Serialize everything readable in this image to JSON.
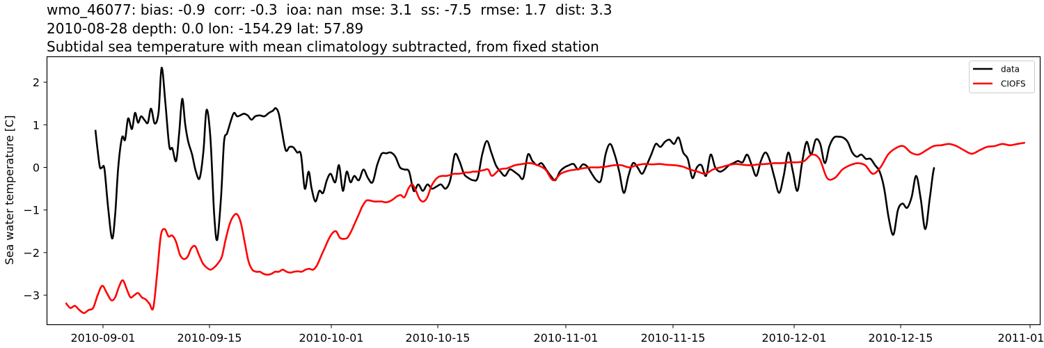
{
  "title": {
    "line1": "wmo_46077: bias: -0.9  corr: -0.3  ioa: nan  mse: 3.1  ss: -7.5  rmse: 1.7  dist: 3.3",
    "line2": "2010-08-28 depth: 0.0 lon: -154.29 lat: 57.89",
    "line3": "Subtidal sea temperature with mean climatology subtracted, from fixed station"
  },
  "chart_data": {
    "type": "line",
    "title": "wmo_46077: bias: -0.9  corr: -0.3  ioa: nan  mse: 3.1  ss: -7.5  rmse: 1.7  dist: 3.3 / 2010-08-28 depth: 0.0 lon: -154.29 lat: 57.89 / Subtidal sea temperature with mean climatology subtracted, from fixed station",
    "xlabel": "",
    "ylabel": "Sea water temperature [C]",
    "ylim": [
      -3.7,
      2.6
    ],
    "xlim": [
      "2010-08-25",
      "2011-01-02"
    ],
    "yticks": [
      -3,
      -2,
      -1,
      0,
      1,
      2
    ],
    "ytick_labels": [
      "−3",
      "−2",
      "−1",
      "0",
      "1",
      "2"
    ],
    "xticks": [
      "2010-09-01",
      "2010-09-15",
      "2010-10-01",
      "2010-10-15",
      "2010-11-01",
      "2010-11-15",
      "2010-12-01",
      "2010-12-15",
      "2011-01-01"
    ],
    "grid": false,
    "legend": {
      "position": "upper right",
      "entries": [
        "data",
        "CIOFS"
      ]
    },
    "series": [
      {
        "name": "data",
        "color": "#000000",
        "x_days": [
          0,
          0.3,
          0.6,
          0.9,
          1.2,
          1.7,
          2.2,
          2.6,
          3.0,
          3.5,
          3.9,
          4.3,
          4.8,
          5.2,
          5.6,
          6.0,
          6.5,
          6.9,
          7.3,
          7.8,
          8.3,
          8.7,
          9.2,
          9.7,
          10.1,
          10.6,
          11.0,
          11.4,
          11.8,
          12.2,
          12.7,
          13.2,
          13.7,
          14.2,
          14.6,
          15.1,
          15.6,
          16.0,
          16.5,
          16.9,
          17.3,
          17.8,
          18.2,
          18.6,
          19.0,
          19.5,
          20.0,
          20.5,
          21.0,
          21.6,
          22.2,
          22.8,
          23.3,
          23.7,
          24.1,
          24.5,
          25.0,
          25.5,
          26.0,
          26.5,
          27.0,
          27.5,
          28.0,
          28.4,
          28.9,
          29.4,
          29.9,
          30.4,
          30.9,
          31.5,
          32.0,
          32.5,
          33.0,
          33.5,
          34.0,
          34.6,
          35.2,
          35.8,
          36.4,
          37.0,
          37.6,
          38.2,
          38.8,
          39.4,
          40.0,
          40.6,
          41.2,
          41.8,
          42.4,
          43.0,
          43.6,
          44.2,
          44.8,
          45.4,
          46.0,
          46.6,
          47.2,
          47.8,
          48.4,
          49.0,
          49.6,
          50.2,
          50.8,
          51.4,
          52.0,
          52.6,
          53.2,
          53.8,
          54.4,
          55.0,
          55.6,
          56.2,
          56.8,
          57.4,
          58.0,
          58.6,
          59.2,
          59.8,
          60.4,
          61.0,
          61.6,
          62.2,
          62.8,
          63.4,
          64.0,
          64.6,
          65.2,
          65.8,
          66.4,
          67.0,
          67.6,
          68.2,
          68.8,
          69.4,
          70.0,
          70.6,
          71.2,
          71.8,
          72.4,
          73.0,
          73.6,
          74.2,
          74.8,
          75.4,
          76.0,
          76.6,
          77.2,
          77.8,
          78.4,
          79.0,
          79.6,
          80.2,
          80.8,
          81.4,
          82.0,
          82.6,
          83.2,
          83.8,
          84.4,
          85.0,
          85.6,
          86.2,
          86.8,
          87.4,
          88.0,
          88.6,
          89.2,
          89.8,
          90.4,
          91.0,
          91.6,
          92.2,
          92.8,
          93.4,
          94.0,
          94.6,
          95.2,
          95.8,
          96.4,
          97.0,
          97.6,
          98.2,
          98.8,
          99.4,
          100.0,
          100.6,
          101.2,
          101.8,
          102.4,
          103.0,
          103.6,
          104.2,
          104.8,
          105.4,
          106.0,
          106.6,
          107.2,
          107.8,
          108.4,
          109.0,
          109.6,
          110.2,
          110.8,
          111.4,
          112.0,
          112.6,
          113.2,
          113.8,
          114.4,
          115.0,
          115.6,
          116.2,
          116.8,
          117.4,
          118.0,
          118.6,
          119.2,
          119.8,
          120.4,
          121.0,
          121.6,
          122.2
        ],
        "x_origin": "2010-08-31",
        "values": [
          0.88,
          0.4,
          0.0,
          0.0,
          -0.05,
          -1.0,
          -1.67,
          -1.1,
          0.0,
          0.7,
          0.65,
          1.15,
          0.9,
          1.28,
          1.05,
          1.2,
          1.1,
          1.05,
          1.38,
          1.03,
          1.3,
          2.34,
          1.5,
          0.5,
          0.45,
          0.15,
          0.8,
          1.61,
          1.0,
          0.6,
          0.3,
          -0.1,
          -0.25,
          0.4,
          1.35,
          0.7,
          -1.1,
          -1.7,
          -0.7,
          0.6,
          0.8,
          1.1,
          1.28,
          1.2,
          1.22,
          1.26,
          1.22,
          1.12,
          1.2,
          1.22,
          1.2,
          1.28,
          1.33,
          1.39,
          1.25,
          0.85,
          0.4,
          0.48,
          0.47,
          0.35,
          0.3,
          -0.5,
          -0.1,
          -0.5,
          -0.8,
          -0.55,
          -0.6,
          -0.3,
          -0.15,
          -0.35,
          0.05,
          -0.55,
          -0.1,
          -0.35,
          -0.2,
          -0.3,
          -0.05,
          -0.25,
          -0.35,
          0.05,
          0.32,
          0.33,
          0.35,
          0.25,
          0.0,
          -0.05,
          -0.1,
          -0.55,
          -0.4,
          -0.55,
          -0.4,
          -0.5,
          -0.45,
          -0.4,
          -0.5,
          -0.3,
          0.3,
          0.15,
          -0.15,
          -0.25,
          -0.3,
          -0.25,
          0.3,
          0.62,
          0.35,
          0.05,
          -0.1,
          -0.2,
          -0.05,
          -0.1,
          -0.18,
          -0.25,
          0.3,
          0.15,
          0.05,
          0.1,
          -0.05,
          -0.2,
          -0.3,
          -0.1,
          0.0,
          0.05,
          0.08,
          -0.05,
          0.07,
          0.02,
          -0.15,
          -0.3,
          -0.3,
          0.3,
          0.55,
          0.3,
          -0.1,
          -0.6,
          -0.2,
          0.1,
          0.0,
          -0.15,
          0.05,
          0.3,
          0.55,
          0.48,
          0.6,
          0.65,
          0.55,
          0.7,
          0.35,
          0.2,
          -0.25,
          0.0,
          0.05,
          -0.2,
          0.3,
          0.0,
          -0.1,
          -0.05,
          0.05,
          0.1,
          0.15,
          0.12,
          0.3,
          0.05,
          -0.2,
          0.15,
          0.35,
          0.15,
          -0.25,
          -0.6,
          -0.2,
          0.35,
          -0.1,
          -0.55,
          0.1,
          0.6,
          0.3,
          0.65,
          0.55,
          0.1,
          0.5,
          0.7,
          0.72,
          0.7,
          0.6,
          0.35,
          0.25,
          0.3,
          0.2,
          0.2,
          0.05,
          -0.1,
          -0.5,
          -1.2,
          -1.58,
          -1.0,
          -0.85,
          -0.95,
          -0.7,
          -0.2,
          -0.75,
          -1.45,
          -0.7,
          0.0,
          -0.45
        ]
      },
      {
        "name": "CIOFS",
        "color": "#ff0000",
        "x_days": [
          -3.9,
          -3.3,
          -2.7,
          -2.1,
          -1.5,
          -0.9,
          -0.3,
          0.3,
          0.9,
          1.5,
          2.1,
          2.6,
          3.1,
          3.6,
          4.1,
          4.6,
          5.1,
          5.6,
          6.1,
          6.6,
          7.1,
          7.6,
          8.1,
          8.6,
          9.1,
          9.6,
          10.1,
          10.6,
          11.1,
          11.6,
          12.1,
          12.6,
          13.1,
          13.6,
          14.1,
          14.6,
          15.1,
          15.6,
          16.1,
          16.6,
          17.1,
          17.6,
          18.1,
          18.6,
          19.1,
          19.6,
          20.1,
          20.6,
          21.1,
          21.6,
          22.1,
          22.6,
          23.1,
          23.6,
          24.1,
          24.6,
          25.1,
          25.6,
          26.1,
          26.6,
          27.1,
          27.6,
          28.1,
          28.6,
          29.1,
          29.6,
          30.1,
          30.6,
          31.1,
          31.6,
          32.1,
          32.6,
          33.1,
          33.6,
          34.1,
          34.6,
          35.1,
          35.6,
          36.1,
          36.6,
          37.1,
          37.6,
          38.1,
          38.6,
          39.1,
          39.6,
          40.1,
          40.6,
          41.1,
          41.6,
          42.1,
          42.6,
          43.1,
          43.6,
          44.1,
          44.6,
          45.1,
          45.6,
          46.1,
          46.6,
          47.1,
          47.6,
          48.1,
          48.6,
          49.1,
          49.6,
          50.1,
          50.6,
          51.1,
          51.6,
          52.1,
          53.1,
          54.1,
          55.1,
          56.1,
          57.1,
          58.1,
          59.1,
          60.1,
          61.1,
          62.1,
          63.1,
          64.1,
          65.1,
          66.1,
          67.1,
          68.1,
          69.1,
          70.1,
          71.1,
          72.1,
          73.1,
          74.1,
          75.1,
          76.1,
          77.1,
          78.1,
          79.1,
          80.1,
          81.1,
          82.1,
          83.1,
          84.1,
          85.1,
          86.1,
          87.1,
          88.1,
          89.1,
          90.1,
          91.1,
          92.1,
          93.1,
          94.1,
          95.1,
          96.1,
          97.1,
          98.1,
          99.1,
          100.1,
          101.1,
          102.1,
          103.1,
          104.1,
          105.1,
          106.1,
          107.1,
          108.1,
          109.1,
          110.1,
          111.1,
          112.1,
          113.1,
          114.1,
          115.1,
          116.1,
          117.1,
          118.1,
          119.1,
          120.1,
          121.1,
          122.1
        ],
        "x_origin": "2010-08-31",
        "values": [
          -3.18,
          -3.3,
          -3.25,
          -3.35,
          -3.42,
          -3.35,
          -3.3,
          -3.0,
          -2.78,
          -2.95,
          -3.12,
          -3.05,
          -2.8,
          -2.65,
          -2.85,
          -3.05,
          -3.0,
          -2.95,
          -3.05,
          -3.1,
          -3.2,
          -3.3,
          -2.5,
          -1.6,
          -1.45,
          -1.62,
          -1.6,
          -1.75,
          -2.05,
          -2.15,
          -2.1,
          -1.9,
          -1.85,
          -2.05,
          -2.25,
          -2.35,
          -2.4,
          -2.35,
          -2.25,
          -2.1,
          -1.7,
          -1.35,
          -1.15,
          -1.1,
          -1.3,
          -1.75,
          -2.2,
          -2.4,
          -2.45,
          -2.45,
          -2.5,
          -2.52,
          -2.5,
          -2.45,
          -2.45,
          -2.4,
          -2.45,
          -2.47,
          -2.45,
          -2.44,
          -2.45,
          -2.4,
          -2.38,
          -2.4,
          -2.3,
          -2.1,
          -1.9,
          -1.7,
          -1.55,
          -1.5,
          -1.65,
          -1.68,
          -1.65,
          -1.5,
          -1.3,
          -1.1,
          -0.9,
          -0.78,
          -0.78,
          -0.8,
          -0.8,
          -0.8,
          -0.82,
          -0.8,
          -0.75,
          -0.68,
          -0.65,
          -0.7,
          -0.5,
          -0.4,
          -0.55,
          -0.75,
          -0.8,
          -0.7,
          -0.45,
          -0.3,
          -0.22,
          -0.2,
          -0.2,
          -0.18,
          -0.15,
          -0.15,
          -0.14,
          -0.12,
          -0.12,
          -0.1,
          -0.1,
          -0.08,
          -0.06,
          -0.05,
          -0.2,
          -0.05,
          -0.02,
          0.05,
          0.08,
          0.1,
          0.05,
          -0.05,
          -0.3,
          -0.15,
          -0.08,
          -0.05,
          -0.02,
          0.0,
          0.0,
          0.02,
          0.05,
          0.05,
          0.0,
          0.05,
          0.08,
          0.07,
          0.08,
          0.06,
          0.05,
          0.02,
          -0.05,
          -0.1,
          -0.15,
          -0.05,
          0.0,
          0.05,
          0.08,
          0.06,
          0.05,
          0.07,
          0.08,
          0.1,
          0.1,
          0.12,
          0.12,
          0.15,
          0.3,
          0.2,
          -0.25,
          -0.25,
          -0.05,
          0.05,
          0.1,
          0.05,
          -0.15,
          0.0,
          0.3,
          0.45,
          0.5,
          0.35,
          0.3,
          0.4,
          0.5,
          0.52,
          0.55,
          0.5,
          0.4,
          0.32,
          0.4,
          0.48,
          0.5,
          0.55,
          0.52,
          0.55,
          0.58
        ]
      }
    ]
  },
  "axes": {
    "ylabel": "Sea water temperature [C]",
    "yticks": [
      {
        "value": 2,
        "label": "2"
      },
      {
        "value": 1,
        "label": "1"
      },
      {
        "value": 0,
        "label": "0"
      },
      {
        "value": -1,
        "label": "−1"
      },
      {
        "value": -2,
        "label": "−2"
      },
      {
        "value": -3,
        "label": "−3"
      }
    ],
    "xticks": [
      {
        "label": "2010-09-01",
        "day": 1
      },
      {
        "label": "2010-09-15",
        "day": 15
      },
      {
        "label": "2010-10-01",
        "day": 31
      },
      {
        "label": "2010-10-15",
        "day": 45
      },
      {
        "label": "2010-11-01",
        "day": 62
      },
      {
        "label": "2010-11-15",
        "day": 76
      },
      {
        "label": "2010-12-01",
        "day": 92
      },
      {
        "label": "2010-12-15",
        "day": 106
      },
      {
        "label": "2011-01-01",
        "day": 123
      }
    ]
  },
  "legend": {
    "items": [
      {
        "label": "data",
        "color": "#000000"
      },
      {
        "label": "CIOFS",
        "color": "#ff0000"
      }
    ]
  }
}
